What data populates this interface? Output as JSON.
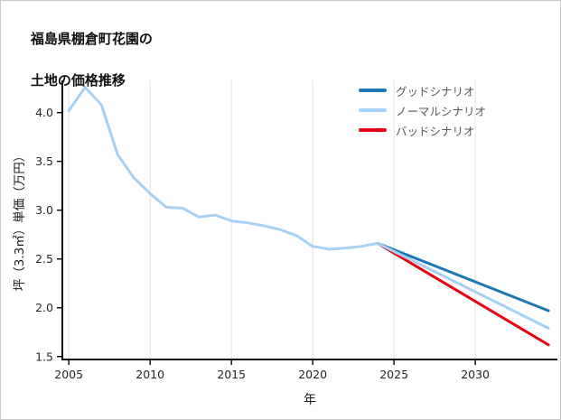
{
  "page": {
    "title_line1": "福島県棚倉町花園の",
    "title_line2": "土地の価格推移"
  },
  "axes": {
    "x_label": "年",
    "y_label": "坪（3.3㎡）単価（万円）"
  },
  "legend": [
    {
      "label": "グッドシナリオ",
      "color": "#1f77b4"
    },
    {
      "label": "ノーマルシナリオ",
      "color": "#a7d1f4"
    },
    {
      "label": "バッドシナリオ",
      "color": "#e60012"
    }
  ],
  "chart_data": {
    "type": "line",
    "title": "福島県棚倉町花園の 土地の価格推移",
    "xlabel": "年",
    "ylabel": "坪（3.3㎡）単価（万円）",
    "xlim": [
      2004.6,
      2035.05
    ],
    "ylim": [
      1.47,
      4.33
    ],
    "xticks": [
      2005,
      2010,
      2015,
      2020,
      2025,
      2030
    ],
    "yticks": [
      1.5,
      2.0,
      2.5,
      3.0,
      3.5,
      4.0
    ],
    "grid": "vertical-only",
    "legend_position": "top-right",
    "style": {
      "axis_color": "#111111",
      "grid_color": "#e2e2e2",
      "tick_color": "#262626"
    },
    "series": [
      {
        "name": "グッドシナリオ",
        "color": "#1f77b4",
        "width": 3,
        "x": [
          2024,
          2034.5
        ],
        "y": [
          2.66,
          1.97
        ]
      },
      {
        "name": "バッドシナリオ",
        "color": "#e60012",
        "width": 3,
        "x": [
          2024,
          2034.5
        ],
        "y": [
          2.66,
          1.62
        ]
      },
      {
        "name": "ノーマルシナリオ",
        "color": "#a7d1f4",
        "width": 3,
        "x": [
          2024,
          2034.5
        ],
        "y": [
          2.66,
          1.79
        ]
      },
      {
        "name": "historical",
        "color": "#a7d1f4",
        "width": 3,
        "x": [
          2005,
          2006,
          2007,
          2008,
          2009,
          2010,
          2011,
          2012,
          2013,
          2014,
          2015,
          2016,
          2017,
          2018,
          2019,
          2020,
          2021,
          2022,
          2023,
          2024
        ],
        "y": [
          4.02,
          4.26,
          4.08,
          3.57,
          3.33,
          3.17,
          3.03,
          3.02,
          2.93,
          2.95,
          2.89,
          2.87,
          2.84,
          2.8,
          2.74,
          2.63,
          2.6,
          2.61,
          2.63,
          2.66
        ]
      }
    ]
  }
}
